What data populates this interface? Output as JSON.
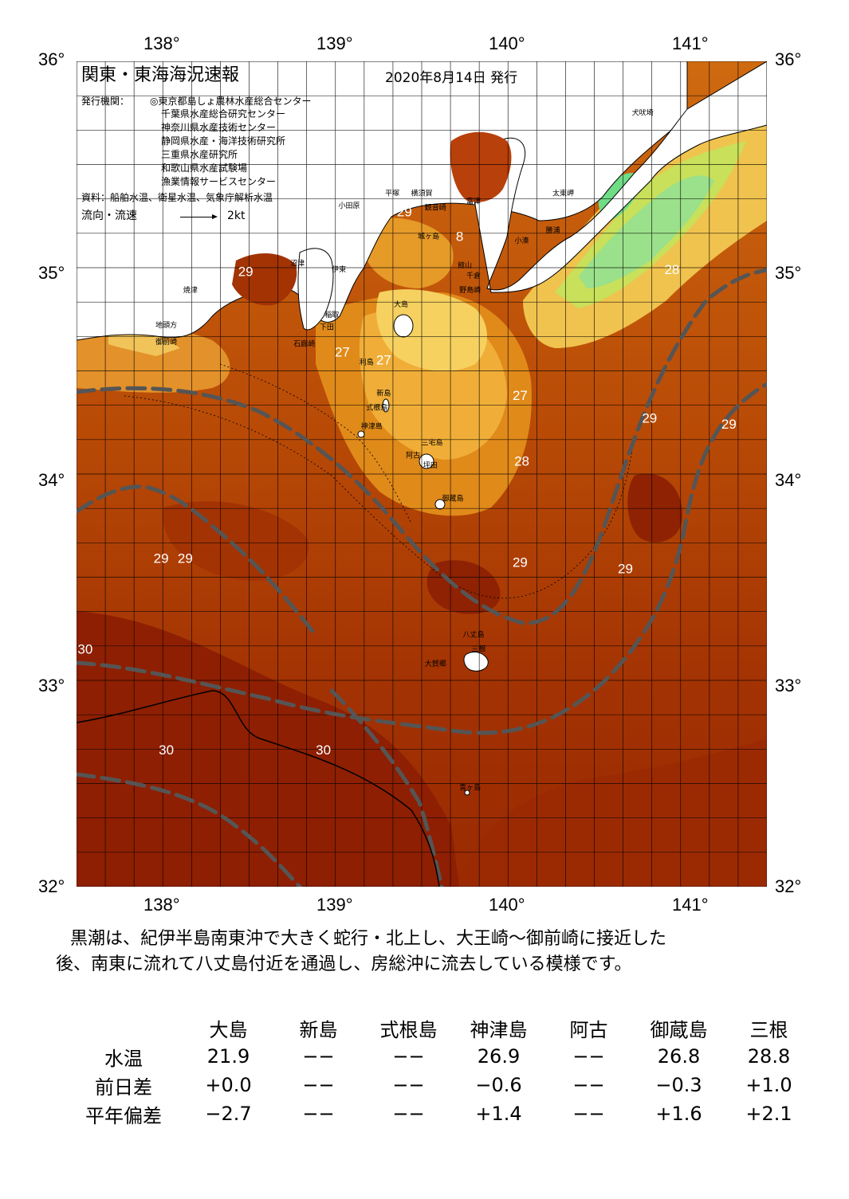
{
  "map": {
    "title": "関東・東海海況速報",
    "issue_date": "2020年8月14日 発行",
    "publisher_label": "発行機関：",
    "publishers": [
      "◎東京都島しょ農林水産総合センター",
      "千葉県水産総合研究センター",
      "神奈川県水産技術センター",
      "静岡県水産・海洋技術研究所",
      "三重県水産研究所",
      "和歌山県水産試験場",
      "漁業情報サービスセンター"
    ],
    "source": "資料：船舶水温、衛星水温、気象庁解析水温",
    "current_legend_label": "流向・流速",
    "current_legend_speed": "2kt",
    "lon_labels": [
      "138°",
      "139°",
      "140°",
      "141°"
    ],
    "lat_labels": [
      "36°",
      "35°",
      "34°",
      "33°",
      "32°"
    ],
    "lon_range": [
      137.5,
      141.5
    ],
    "lat_range": [
      32.0,
      36.0
    ],
    "temperature_labels": [
      {
        "text": "29",
        "lon": 138.48,
        "lat": 34.96
      },
      {
        "text": "29",
        "lon": 139.4,
        "lat": 35.25
      },
      {
        "text": "8",
        "lon": 139.72,
        "lat": 35.13
      },
      {
        "text": "27",
        "lon": 139.04,
        "lat": 34.57
      },
      {
        "text": "27",
        "lon": 139.28,
        "lat": 34.53
      },
      {
        "text": "27",
        "lon": 140.07,
        "lat": 34.36
      },
      {
        "text": "28",
        "lon": 140.08,
        "lat": 34.04
      },
      {
        "text": "28",
        "lon": 140.95,
        "lat": 34.97
      },
      {
        "text": "29",
        "lon": 140.82,
        "lat": 34.25
      },
      {
        "text": "29",
        "lon": 141.28,
        "lat": 34.22
      },
      {
        "text": "29",
        "lon": 137.99,
        "lat": 33.57
      },
      {
        "text": "29",
        "lon": 138.13,
        "lat": 33.57
      },
      {
        "text": "29",
        "lon": 140.07,
        "lat": 33.55
      },
      {
        "text": "29",
        "lon": 140.68,
        "lat": 33.52
      },
      {
        "text": "30",
        "lon": 137.55,
        "lat": 33.13
      },
      {
        "text": "30",
        "lon": 138.02,
        "lat": 32.64
      },
      {
        "text": "30",
        "lon": 138.93,
        "lat": 32.64
      }
    ],
    "place_names": [
      {
        "text": "犬吠埼",
        "lon": 140.78,
        "lat": 35.74
      },
      {
        "text": "太東岬",
        "lon": 140.32,
        "lat": 35.35
      },
      {
        "text": "勝浦",
        "lon": 140.26,
        "lat": 35.17
      },
      {
        "text": "小湊",
        "lon": 140.08,
        "lat": 35.12
      },
      {
        "text": "富津",
        "lon": 139.8,
        "lat": 35.31
      },
      {
        "text": "平塚",
        "lon": 139.33,
        "lat": 35.35
      },
      {
        "text": "横須賀",
        "lon": 139.5,
        "lat": 35.35
      },
      {
        "text": "観音崎",
        "lon": 139.58,
        "lat": 35.28
      },
      {
        "text": "城ヶ島",
        "lon": 139.54,
        "lat": 35.14
      },
      {
        "text": "小田原",
        "lon": 139.08,
        "lat": 35.29
      },
      {
        "text": "沼津",
        "lon": 138.78,
        "lat": 35.01
      },
      {
        "text": "伊東",
        "lon": 139.02,
        "lat": 34.98
      },
      {
        "text": "館山",
        "lon": 139.75,
        "lat": 35.0
      },
      {
        "text": "千倉",
        "lon": 139.8,
        "lat": 34.95
      },
      {
        "text": "野島崎",
        "lon": 139.78,
        "lat": 34.88
      },
      {
        "text": "大島",
        "lon": 139.38,
        "lat": 34.81
      },
      {
        "text": "焼津",
        "lon": 138.16,
        "lat": 34.88
      },
      {
        "text": "稲取",
        "lon": 138.98,
        "lat": 34.76
      },
      {
        "text": "下田",
        "lon": 138.95,
        "lat": 34.7
      },
      {
        "text": "石廊崎",
        "lon": 138.82,
        "lat": 34.62
      },
      {
        "text": "地頭方",
        "lon": 138.02,
        "lat": 34.71
      },
      {
        "text": "御前崎",
        "lon": 138.02,
        "lat": 34.63
      },
      {
        "text": "利島",
        "lon": 139.18,
        "lat": 34.53
      },
      {
        "text": "新島",
        "lon": 139.28,
        "lat": 34.38
      },
      {
        "text": "式根島",
        "lon": 139.24,
        "lat": 34.31
      },
      {
        "text": "神津島",
        "lon": 139.21,
        "lat": 34.22
      },
      {
        "text": "三宅島",
        "lon": 139.56,
        "lat": 34.14
      },
      {
        "text": "阿古",
        "lon": 139.45,
        "lat": 34.08
      },
      {
        "text": "坪田",
        "lon": 139.55,
        "lat": 34.03
      },
      {
        "text": "御蔵島",
        "lon": 139.68,
        "lat": 33.87
      },
      {
        "text": "八丈島",
        "lon": 139.8,
        "lat": 33.21
      },
      {
        "text": "三根",
        "lon": 139.83,
        "lat": 33.14
      },
      {
        "text": "大賀郷",
        "lon": 139.58,
        "lat": 33.07
      },
      {
        "text": "青ヶ島",
        "lon": 139.78,
        "lat": 32.47
      }
    ]
  },
  "summary": {
    "line1": "黒潮は、紀伊半島南東沖で大きく蛇行・北上し、大王崎～御前崎に接近した",
    "line2": "後、南東に流れて八丈島付近を通過し、房総沖に流去している模様です。"
  },
  "table": {
    "columns": [
      "大島",
      "新島",
      "式根島",
      "神津島",
      "阿古",
      "御蔵島",
      "三根"
    ],
    "rows": [
      {
        "label": "水温",
        "values": [
          "21.9",
          "−−",
          "−−",
          "26.9",
          "−−",
          "26.8",
          "28.8"
        ]
      },
      {
        "label": "前日差",
        "values": [
          "+0.0",
          "−−",
          "−−",
          "−0.6",
          "−−",
          "−0.3",
          "+1.0"
        ]
      },
      {
        "label": "平年偏差",
        "values": [
          "−2.7",
          "−−",
          "−−",
          "+1.4",
          "−−",
          "+1.6",
          "+2.1"
        ]
      }
    ]
  }
}
